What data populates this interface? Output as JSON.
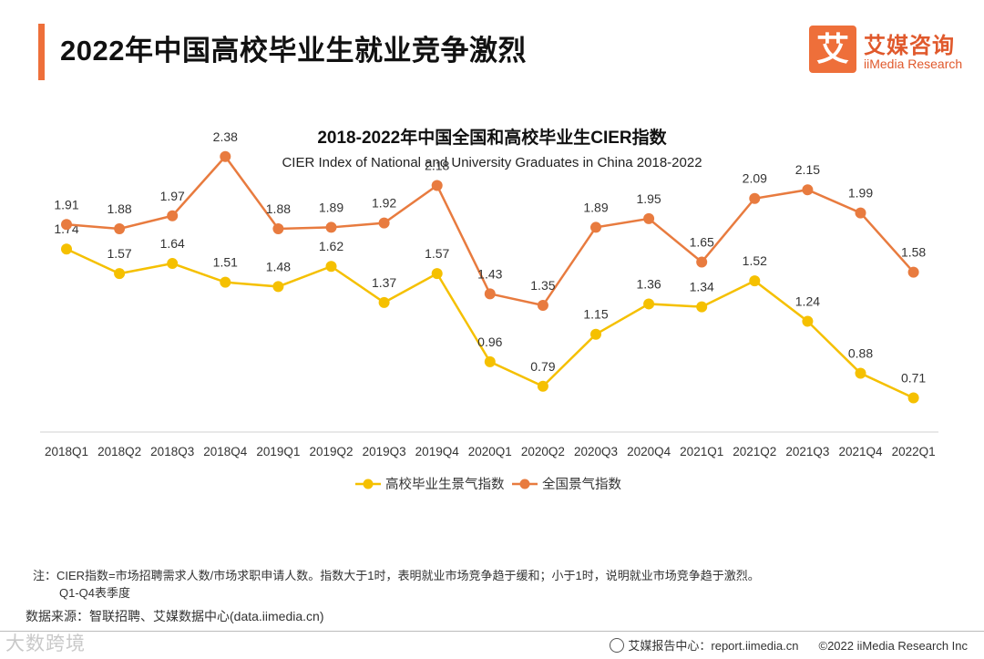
{
  "header": {
    "title": "2022年中国高校毕业生就业竞争激烈",
    "logo_mark": "艾",
    "logo_cn": "艾媒咨询",
    "logo_en": "iiMedia Research"
  },
  "chart_data": {
    "type": "line",
    "title": "2018-2022年中国全国和高校毕业生CIER指数",
    "subtitle": "CIER Index of National and University Graduates in China 2018-2022",
    "categories": [
      "2018Q1",
      "2018Q2",
      "2018Q3",
      "2018Q4",
      "2019Q1",
      "2019Q2",
      "2019Q3",
      "2019Q4",
      "2020Q1",
      "2020Q2",
      "2020Q3",
      "2020Q4",
      "2021Q1",
      "2021Q2",
      "2021Q3",
      "2021Q4",
      "2022Q1"
    ],
    "series": [
      {
        "name": "高校毕业生景气指数",
        "color": "#f5c000",
        "values": [
          1.74,
          1.57,
          1.64,
          1.51,
          1.48,
          1.62,
          1.37,
          1.57,
          0.96,
          0.79,
          1.15,
          1.36,
          1.34,
          1.52,
          1.24,
          0.88,
          0.71
        ]
      },
      {
        "name": "全国景气指数",
        "color": "#e87b3f",
        "values": [
          1.91,
          1.88,
          1.97,
          2.38,
          1.88,
          1.89,
          1.92,
          2.18,
          1.43,
          1.35,
          1.89,
          1.95,
          1.65,
          2.09,
          2.15,
          1.99,
          1.58
        ]
      }
    ],
    "legend_position": "bottom",
    "grid": false
  },
  "notes": {
    "line1": "注：CIER指数=市场招聘需求人数/市场求职申请人数。指数大于1时，表明就业市场竞争趋于缓和；小于1时，说明就业市场竞争趋于激烈。",
    "line2": "Q1-Q4表季度"
  },
  "source": "数据来源：智联招聘、艾媒数据中心(data.iimedia.cn)",
  "footer": {
    "report": "艾媒报告中心：report.iimedia.cn",
    "copyright": "©2022  iiMedia Research  Inc"
  },
  "watermark": "大数跨境"
}
